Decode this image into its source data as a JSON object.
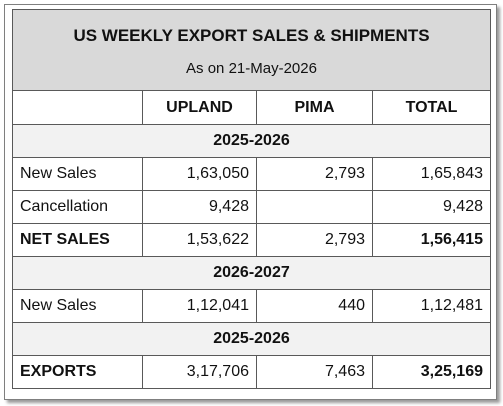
{
  "header": {
    "title": "US WEEKLY EXPORT SALES & SHIPMENTS",
    "subtitle": "As on 21-May-2026"
  },
  "table": {
    "columns": [
      "UPLAND",
      "PIMA",
      "TOTAL"
    ],
    "rows": [
      [
        "2025-2026"
      ],
      [
        "New Sales",
        "1,63,050",
        "2,793",
        "1,65,843"
      ],
      [
        "Cancellation",
        "9,428",
        null,
        "9,428"
      ],
      [
        "NET SALES",
        "1,53,622",
        "2,793",
        "1,56,415"
      ],
      [
        "2026-2027"
      ],
      [
        "New Sales",
        "1,12,041",
        "440",
        "1,12,481"
      ],
      [
        "2025-2026"
      ],
      [
        "EXPORTS",
        "3,17,706",
        "7,463",
        "3,25,169"
      ]
    ]
  }
}
